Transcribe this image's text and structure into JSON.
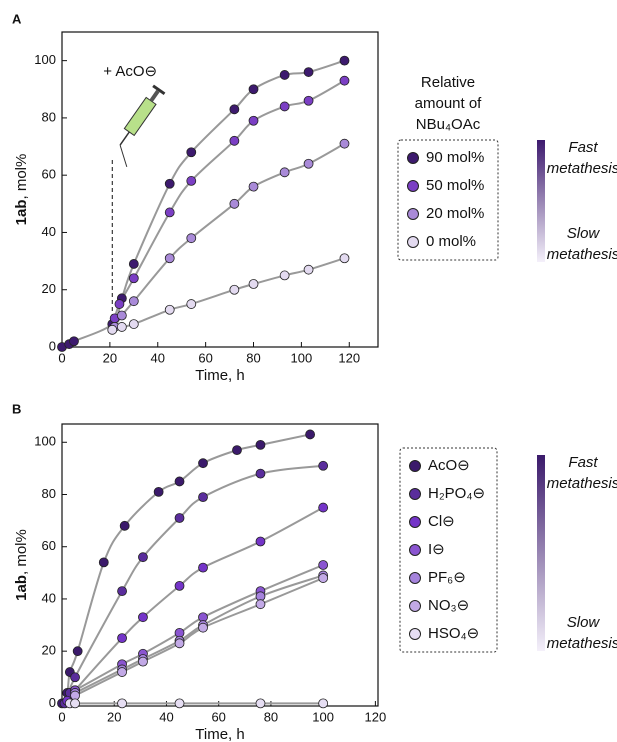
{
  "chart_data": [
    {
      "type": "scatter",
      "panel_label": "A",
      "x_label": "Time, h",
      "y_label_bold": "1ab",
      "y_label": ", mol%",
      "xlim": [
        0,
        132
      ],
      "xticks": [
        0,
        20,
        40,
        60,
        80,
        100,
        120
      ],
      "ylim": [
        0,
        110
      ],
      "yticks": [
        0,
        20,
        40,
        60,
        80,
        100
      ],
      "legend_title": [
        "Relative",
        "amount of",
        "NBu₄OAc"
      ],
      "gradient_labels": {
        "top": [
          "Fast",
          "metathesis"
        ],
        "bottom": [
          "Slow",
          "metathesis"
        ]
      },
      "annotation": {
        "text": "+ AcO⊖",
        "x": 21
      },
      "series": [
        {
          "name": "90 mol%",
          "color": "#3d1a6e",
          "x": [
            0,
            3,
            5,
            21,
            25,
            30,
            45,
            54,
            72,
            80,
            93,
            103,
            118
          ],
          "values": [
            0,
            1,
            2,
            8,
            17,
            29,
            57,
            68,
            83,
            90,
            95,
            96,
            100
          ]
        },
        {
          "name": "50 mol%",
          "color": "#7b3fc4",
          "x": [
            22,
            24,
            30,
            45,
            54,
            72,
            80,
            93,
            103,
            118
          ],
          "values": [
            10,
            15,
            24,
            47,
            58,
            72,
            79,
            84,
            86,
            93
          ]
        },
        {
          "name": "20 mol%",
          "color": "#a98ad8",
          "x": [
            22,
            25,
            30,
            45,
            54,
            72,
            80,
            93,
            103,
            118
          ],
          "values": [
            7,
            11,
            16,
            31,
            38,
            50,
            56,
            61,
            64,
            71
          ]
        },
        {
          "name": "0 mol%",
          "color": "#e3daf0",
          "x": [
            21,
            25,
            30,
            45,
            54,
            72,
            80,
            93,
            103,
            118
          ],
          "values": [
            6,
            7,
            8,
            13,
            15,
            20,
            22,
            25,
            27,
            31
          ]
        }
      ]
    },
    {
      "type": "scatter",
      "panel_label": "B",
      "x_label": "Time, h",
      "y_label_bold": "1ab",
      "y_label": ", mol%",
      "xlim": [
        0,
        121
      ],
      "xticks": [
        0,
        20,
        40,
        60,
        80,
        100,
        120
      ],
      "ylim": [
        -1,
        107
      ],
      "yticks": [
        0,
        20,
        40,
        60,
        80,
        100
      ],
      "gradient_labels": {
        "top": [
          "Fast",
          "metathesis"
        ],
        "bottom": [
          "Slow",
          "metathesis"
        ]
      },
      "series": [
        {
          "name": "AcO⊖",
          "color": "#3b1a6b",
          "x": [
            0,
            2,
            3,
            6,
            16,
            24,
            37,
            45,
            54,
            67,
            76,
            95
          ],
          "values": [
            0,
            4,
            12,
            20,
            54,
            68,
            81,
            85,
            92,
            97,
            99,
            103
          ]
        },
        {
          "name": "H₂PO₄⊖",
          "color": "#5a2d9c",
          "x": [
            1,
            3,
            5,
            23,
            31,
            45,
            54,
            76,
            100
          ],
          "values": [
            0,
            4,
            10,
            43,
            56,
            71,
            79,
            88,
            91
          ]
        },
        {
          "name": "Cl⊖",
          "color": "#7434c8",
          "x": [
            2,
            5,
            23,
            31,
            45,
            54,
            76,
            100
          ],
          "values": [
            1,
            5,
            25,
            33,
            45,
            52,
            62,
            75
          ]
        },
        {
          "name": "I⊖",
          "color": "#8a55d0",
          "x": [
            5,
            23,
            31,
            45,
            54,
            76,
            100
          ],
          "values": [
            5,
            15,
            19,
            27,
            33,
            43,
            53
          ]
        },
        {
          "name": "PF₆⊖",
          "color": "#a583dc",
          "x": [
            5,
            23,
            31,
            45,
            54,
            76,
            100
          ],
          "values": [
            4,
            13,
            17,
            24,
            30,
            41,
            49
          ]
        },
        {
          "name": "NO₃⊖",
          "color": "#c2a9e6",
          "x": [
            5,
            23,
            31,
            45,
            54,
            76,
            100
          ],
          "values": [
            3,
            12,
            16,
            23,
            29,
            38,
            48
          ]
        },
        {
          "name": "HSO₄⊖",
          "color": "#e6def3",
          "x": [
            3,
            5,
            23,
            45,
            76,
            100
          ],
          "values": [
            0,
            0,
            0,
            0,
            0,
            0
          ]
        }
      ]
    }
  ]
}
